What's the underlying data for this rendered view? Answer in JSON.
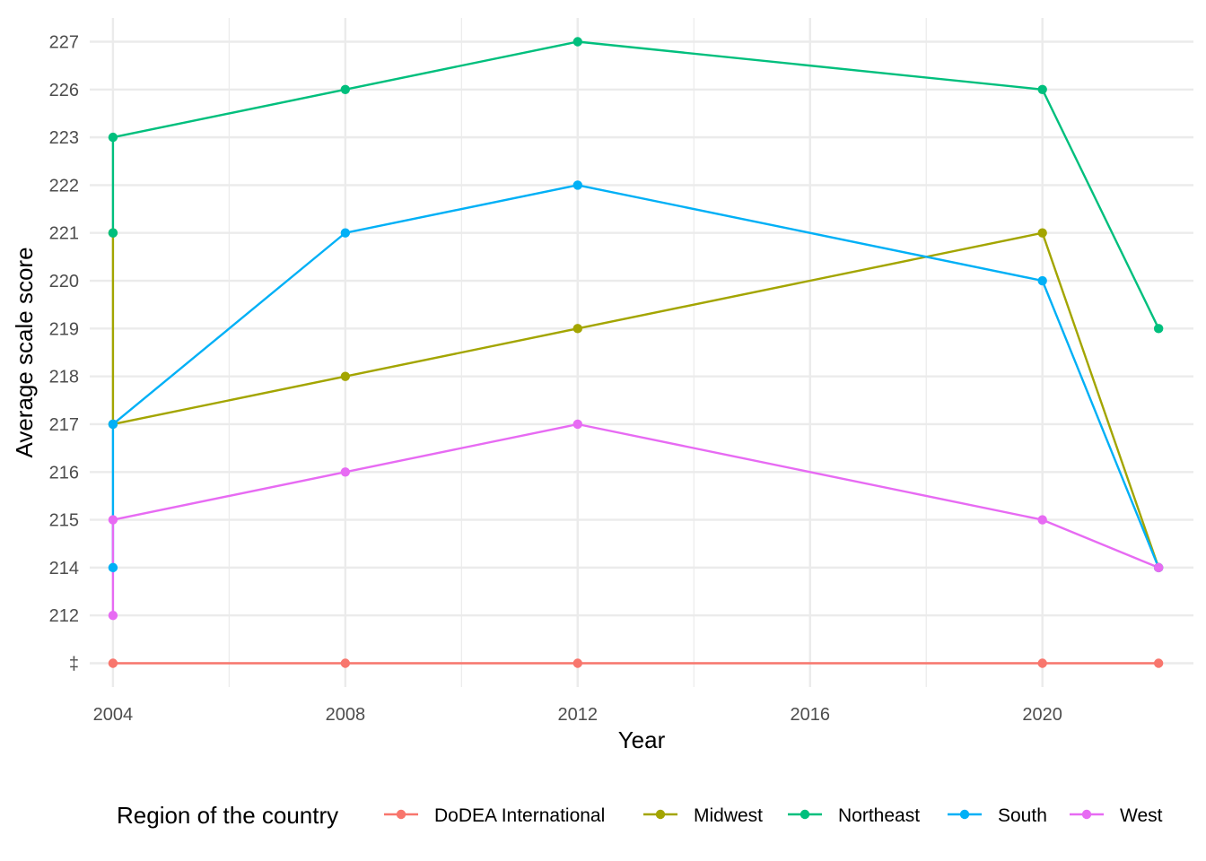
{
  "chart_data": {
    "type": "line",
    "xlabel": "Year",
    "ylabel": "Average scale score",
    "xlim": [
      2003.6,
      2022.6
    ],
    "x_ticks": [
      "2004",
      "2008",
      "2012",
      "2016",
      "2020"
    ],
    "x_tick_values": [
      2004,
      2008,
      2012,
      2016,
      2020
    ],
    "y_categories": [
      "‡",
      "212",
      "214",
      "215",
      "216",
      "217",
      "218",
      "219",
      "220",
      "221",
      "222",
      "223",
      "226",
      "227"
    ],
    "grid": true,
    "legend": {
      "title": "Region of the country",
      "position": "bottom"
    },
    "series": [
      {
        "name": "DoDEA International",
        "color": "#F8766D",
        "points": [
          {
            "x": 2004,
            "y": "‡"
          },
          {
            "x": 2008,
            "y": "‡"
          },
          {
            "x": 2012,
            "y": "‡"
          },
          {
            "x": 2020,
            "y": "‡"
          },
          {
            "x": 2022,
            "y": "‡"
          }
        ]
      },
      {
        "name": "Midwest",
        "color": "#A3A500",
        "points": [
          {
            "x": 2004,
            "y": "221"
          },
          {
            "x": 2004,
            "y": "217"
          },
          {
            "x": 2008,
            "y": "218"
          },
          {
            "x": 2012,
            "y": "219"
          },
          {
            "x": 2020,
            "y": "221"
          },
          {
            "x": 2022,
            "y": "214"
          }
        ]
      },
      {
        "name": "Northeast",
        "color": "#00BF7D",
        "points": [
          {
            "x": 2004,
            "y": "221"
          },
          {
            "x": 2004,
            "y": "223"
          },
          {
            "x": 2008,
            "y": "226"
          },
          {
            "x": 2012,
            "y": "227"
          },
          {
            "x": 2020,
            "y": "226"
          },
          {
            "x": 2022,
            "y": "219"
          }
        ]
      },
      {
        "name": "South",
        "color": "#00B0F6",
        "points": [
          {
            "x": 2004,
            "y": "214"
          },
          {
            "x": 2004,
            "y": "217"
          },
          {
            "x": 2008,
            "y": "221"
          },
          {
            "x": 2012,
            "y": "222"
          },
          {
            "x": 2020,
            "y": "220"
          },
          {
            "x": 2022,
            "y": "214"
          }
        ]
      },
      {
        "name": "West",
        "color": "#E76BF3",
        "points": [
          {
            "x": 2004,
            "y": "212"
          },
          {
            "x": 2004,
            "y": "215"
          },
          {
            "x": 2008,
            "y": "216"
          },
          {
            "x": 2012,
            "y": "217"
          },
          {
            "x": 2020,
            "y": "215"
          },
          {
            "x": 2022,
            "y": "214"
          }
        ]
      }
    ]
  }
}
